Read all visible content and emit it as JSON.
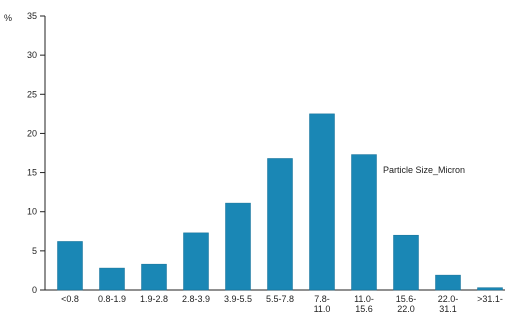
{
  "chart_data": {
    "type": "bar",
    "y_unit_label": "%",
    "categories": [
      "<0.8",
      "0.8-1.9",
      "1.9-2.8",
      "2.8-3.9",
      "3.9-5.5",
      "5.5-7.8",
      "7.8-11.0",
      "11.0-15.6",
      "15.6-22.0",
      "22.0-31.1",
      ">31.1-"
    ],
    "category_lines": [
      [
        "<0.8"
      ],
      [
        "0.8-1.9"
      ],
      [
        "1.9-2.8"
      ],
      [
        "2.8-3.9"
      ],
      [
        "3.9-5.5"
      ],
      [
        "5.5-7.8"
      ],
      [
        "7.8-",
        "11.0"
      ],
      [
        "11.0-",
        "15.6"
      ],
      [
        "15.6-",
        "22.0"
      ],
      [
        "22.0-",
        "31.1"
      ],
      [
        ">31.1-"
      ]
    ],
    "values": [
      6.2,
      2.8,
      3.3,
      7.3,
      11.1,
      16.8,
      22.5,
      17.3,
      7.0,
      1.9,
      0.3
    ],
    "annotation": "Particle Size_Micron",
    "ylim": [
      0,
      35
    ],
    "yticks": [
      0,
      5,
      10,
      15,
      20,
      25,
      30,
      35
    ],
    "colors": {
      "bar": "#1a87b5",
      "bar_edge": "#136e95",
      "axis": "#222222"
    },
    "grid": false
  }
}
